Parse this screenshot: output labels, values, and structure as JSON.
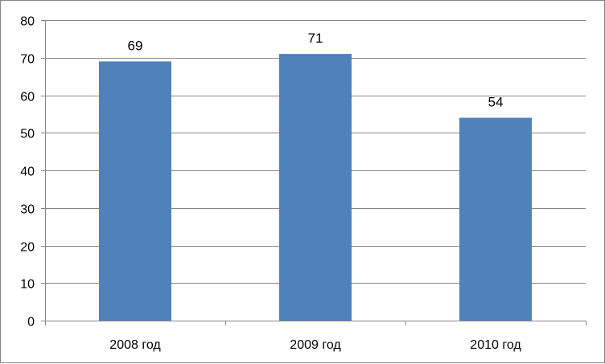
{
  "chart_data": {
    "type": "bar",
    "categories": [
      "2008 год",
      "2009 год",
      "2010 год"
    ],
    "values": [
      69,
      71,
      54
    ],
    "title": "",
    "xlabel": "",
    "ylabel": "",
    "ylim": [
      0,
      80
    ],
    "yticks": [
      "0",
      "10",
      "20",
      "30",
      "40",
      "50",
      "60",
      "70",
      "80"
    ],
    "grid": true,
    "legend": "none",
    "bar_color": "#4F81BD",
    "gridline_color": "#868686"
  }
}
